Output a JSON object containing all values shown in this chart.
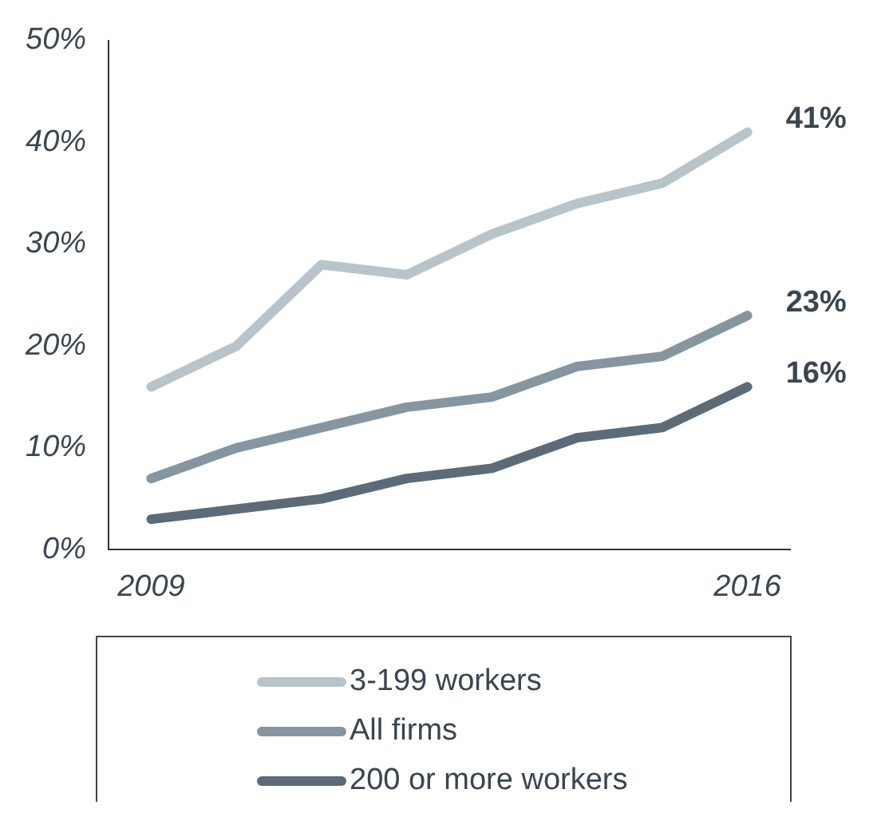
{
  "chart_data": {
    "type": "line",
    "x": [
      2009,
      2010,
      2011,
      2012,
      2013,
      2014,
      2015,
      2016
    ],
    "xlim": [
      2008.5,
      2016.5
    ],
    "xticks": [
      2009,
      2016
    ],
    "ylim": [
      0,
      50
    ],
    "yticks": [
      {
        "value": 0,
        "label": "0%"
      },
      {
        "value": 10,
        "label": "10%"
      },
      {
        "value": 20,
        "label": "20%"
      },
      {
        "value": 30,
        "label": "30%"
      },
      {
        "value": 40,
        "label": "40%"
      },
      {
        "value": 50,
        "label": "50%"
      }
    ],
    "grid": false,
    "legend": "bottom",
    "marker": "none",
    "line_style": "solid",
    "series": [
      {
        "name": "3-199 workers",
        "color": "#b9c4ca",
        "values": [
          16,
          20,
          28,
          27,
          31,
          34,
          36,
          41
        ],
        "value_labels": [
          null,
          null,
          null,
          null,
          null,
          null,
          null,
          "41%"
        ]
      },
      {
        "name": "All firms",
        "color": "#8596a1",
        "values": [
          7,
          10,
          12,
          14,
          15,
          18,
          19,
          23
        ],
        "value_labels": [
          null,
          null,
          null,
          null,
          null,
          null,
          null,
          "23%"
        ]
      },
      {
        "name": "200 or more workers",
        "color": "#5b6b78",
        "values": [
          3,
          4,
          5,
          7,
          8,
          11,
          12,
          16
        ],
        "value_labels": [
          null,
          null,
          null,
          null,
          null,
          null,
          null,
          "16%"
        ]
      }
    ]
  }
}
